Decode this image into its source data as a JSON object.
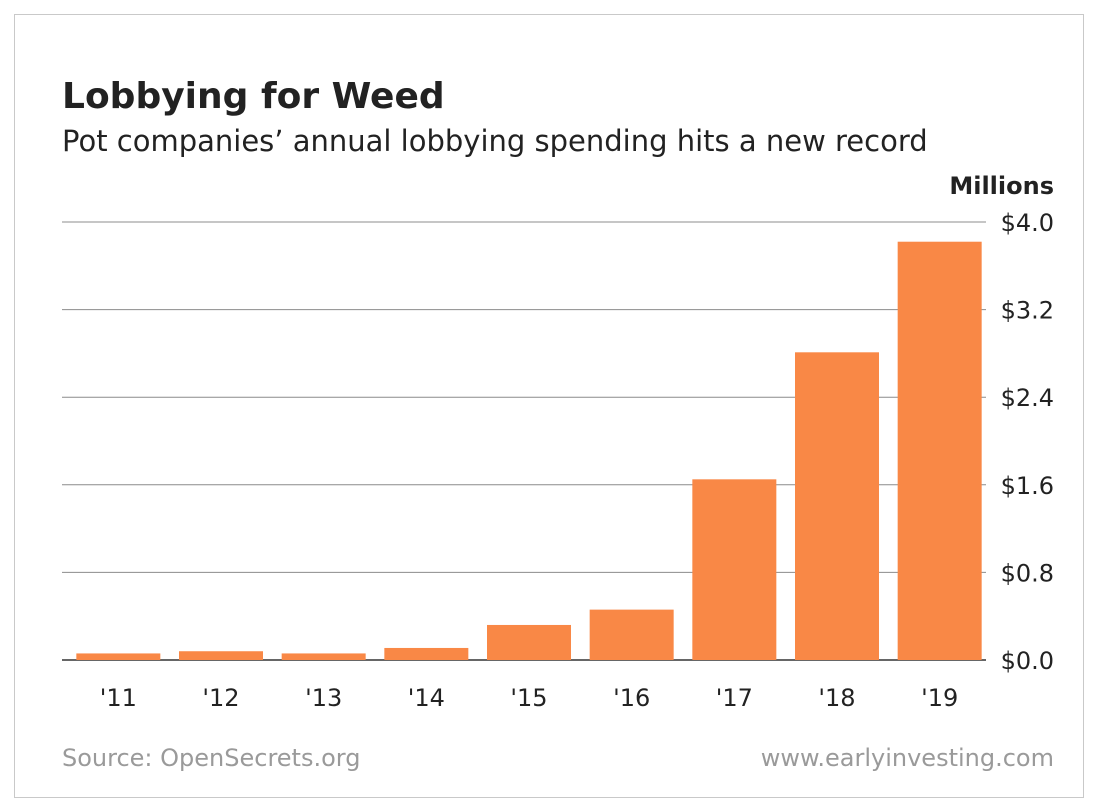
{
  "title": "Lobbying for Weed",
  "subtitle": "Pot companies’ annual lobbying spending hits a new record",
  "unit_label": "Millions",
  "source": "Source: OpenSecrets.org",
  "website": "www.earlyinvesting.com",
  "colors": {
    "bar": "#f98846",
    "grid": "#8c8c8c",
    "text": "#222222",
    "footer": "#9a9a9a"
  },
  "chart_data": {
    "type": "bar",
    "title": "Lobbying for Weed",
    "subtitle": "Pot companies’ annual lobbying spending hits a new record",
    "ylabel": "Millions",
    "categories": [
      "'11",
      "'12",
      "'13",
      "'14",
      "'15",
      "'16",
      "'17",
      "'18",
      "'19"
    ],
    "values": [
      0.06,
      0.08,
      0.06,
      0.11,
      0.32,
      0.46,
      1.65,
      2.81,
      3.82
    ],
    "ylim": [
      0,
      4.0
    ],
    "yticks": [
      0,
      0.8,
      1.6,
      2.4,
      3.2,
      4.0
    ],
    "ytick_labels": [
      "$0.0",
      "$0.8",
      "$1.6",
      "$2.4",
      "$3.2",
      "$4.0"
    ],
    "y_axis_position": "right",
    "grid": true
  }
}
